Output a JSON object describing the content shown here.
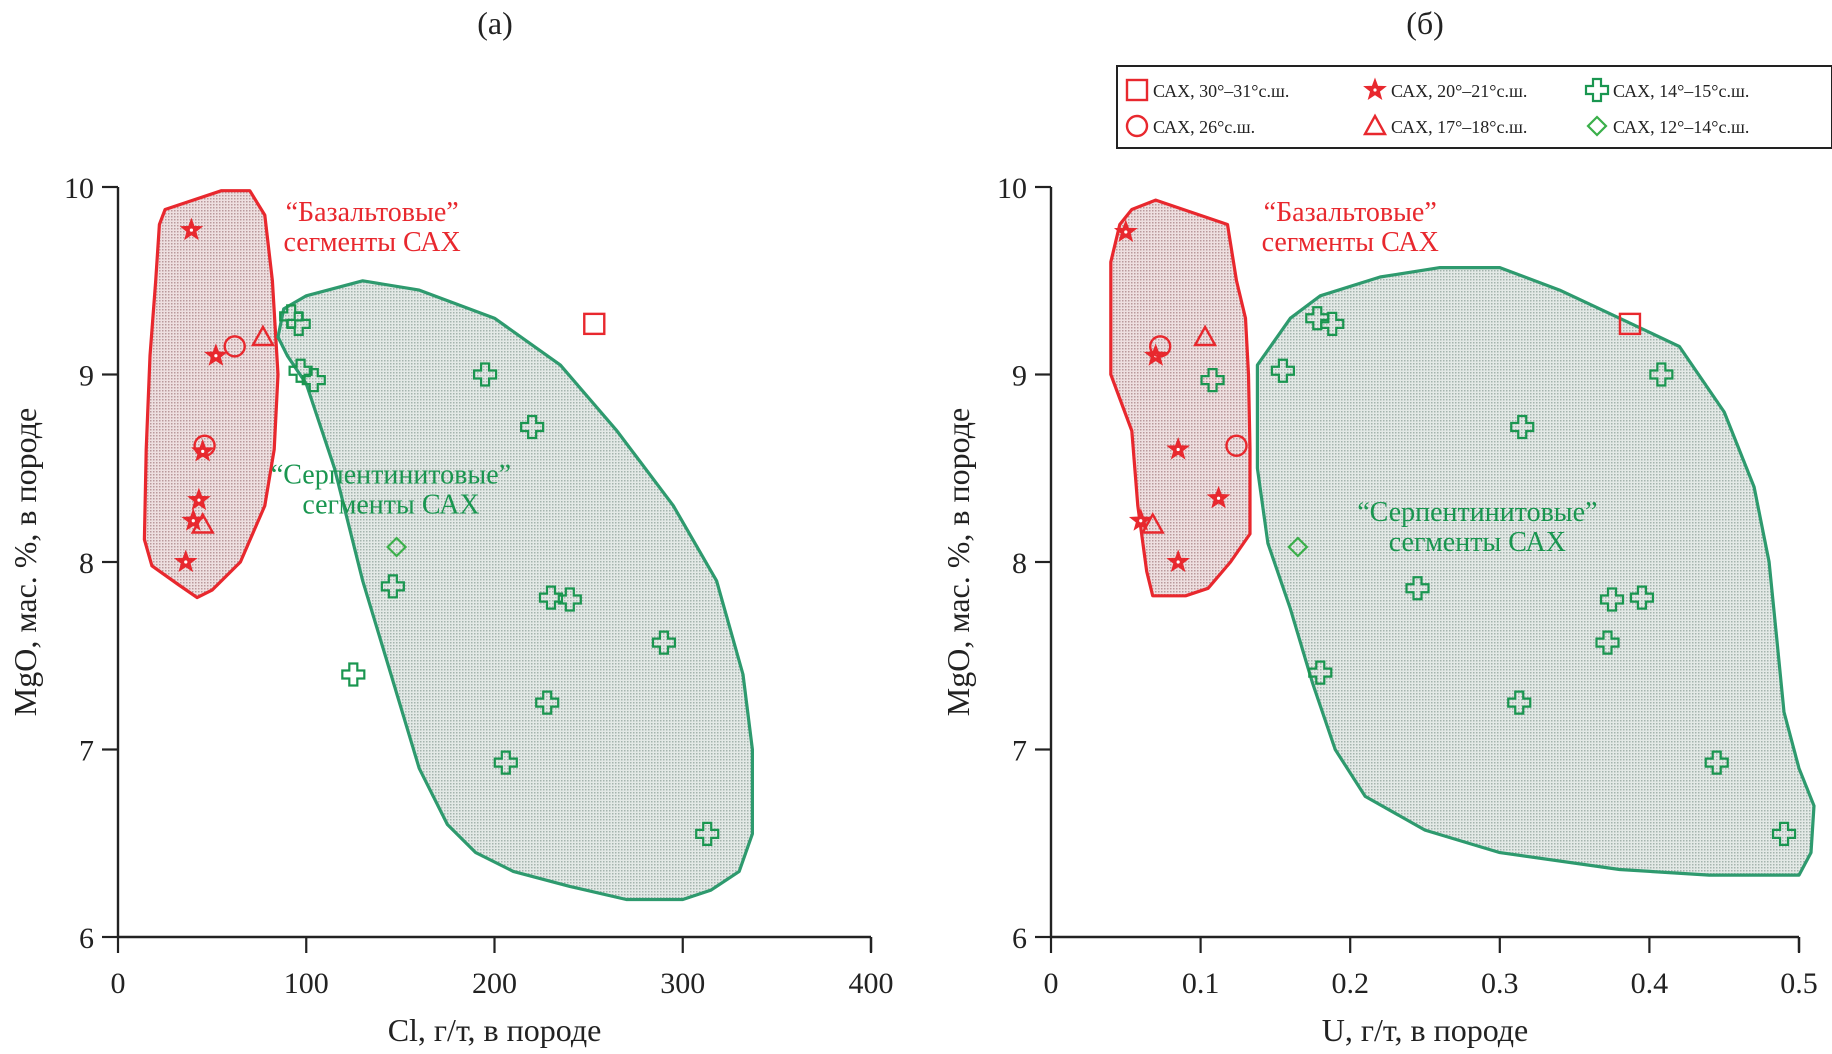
{
  "colors": {
    "red": "#e8282e",
    "green": "#1a9650",
    "green_region_stroke": "#2e9a6e",
    "green_region_fill": "#d3dcd8",
    "red_region_fill": "#e3cfd0",
    "light_green": "#3aaf4a",
    "axis": "#222222"
  },
  "legend": {
    "items": [
      {
        "symbol": "square",
        "color": "red",
        "label": "САХ, 30°–31°с.ш."
      },
      {
        "symbol": "star",
        "color": "red",
        "label": "САХ, 20°–21°с.ш."
      },
      {
        "symbol": "cross",
        "color": "green",
        "label": "САХ, 14°–15°с.ш."
      },
      {
        "symbol": "circle",
        "color": "red",
        "label": "САХ, 26°с.ш."
      },
      {
        "symbol": "triangle",
        "color": "red",
        "label": "САХ, 17°–18°с.ш."
      },
      {
        "symbol": "diamond",
        "color": "light_green",
        "label": "САХ, 12°–14°с.ш."
      }
    ]
  },
  "chart_data": [
    {
      "type": "scatter",
      "title": "(а)",
      "xlabel": "Cl, г/т, в породе",
      "ylabel": "MgO, мас. %, в породе",
      "xlim": [
        0,
        400
      ],
      "ylim": [
        6,
        10
      ],
      "xticks": [
        0,
        100,
        200,
        300,
        400
      ],
      "xtick_labels": [
        "0",
        "100",
        "200",
        "300",
        "400"
      ],
      "yticks": [
        6,
        7,
        8,
        9,
        10
      ],
      "ytick_labels": [
        "6",
        "7",
        "8",
        "9",
        "10"
      ],
      "grid": false,
      "regions": [
        {
          "name": "basalt",
          "label_lines": [
            "“Базальтовые”",
            "сегменты САХ"
          ],
          "label_anchor": [
            135,
            9.82
          ],
          "color": "red",
          "outline": [
            [
              25,
              9.88
            ],
            [
              55,
              9.98
            ],
            [
              70,
              9.98
            ],
            [
              78,
              9.85
            ],
            [
              82,
              9.5
            ],
            [
              85,
              9.0
            ],
            [
              83,
              8.6
            ],
            [
              78,
              8.3
            ],
            [
              65,
              8.0
            ],
            [
              50,
              7.85
            ],
            [
              42,
              7.81
            ],
            [
              32,
              7.88
            ],
            [
              18,
              7.98
            ],
            [
              14,
              8.12
            ],
            [
              15,
              8.6
            ],
            [
              17,
              9.1
            ],
            [
              20,
              9.5
            ],
            [
              22,
              9.8
            ]
          ]
        },
        {
          "name": "serpentinite",
          "label_lines": [
            "“Серпентинитовые”",
            "сегменты САХ"
          ],
          "label_anchor": [
            145,
            8.42
          ],
          "color": "green",
          "outline": [
            [
              88,
              9.35
            ],
            [
              100,
              9.42
            ],
            [
              130,
              9.5
            ],
            [
              160,
              9.45
            ],
            [
              200,
              9.3
            ],
            [
              235,
              9.05
            ],
            [
              265,
              8.7
            ],
            [
              295,
              8.3
            ],
            [
              318,
              7.9
            ],
            [
              332,
              7.4
            ],
            [
              337,
              7.0
            ],
            [
              337,
              6.55
            ],
            [
              330,
              6.35
            ],
            [
              315,
              6.25
            ],
            [
              300,
              6.2
            ],
            [
              270,
              6.2
            ],
            [
              240,
              6.27
            ],
            [
              210,
              6.35
            ],
            [
              190,
              6.45
            ],
            [
              175,
              6.6
            ],
            [
              160,
              6.9
            ],
            [
              145,
              7.4
            ],
            [
              130,
              7.9
            ],
            [
              115,
              8.5
            ],
            [
              100,
              8.95
            ],
            [
              90,
              9.1
            ],
            [
              85,
              9.2
            ]
          ]
        }
      ],
      "series": [
        {
          "name": "САХ, 30°–31°с.ш.",
          "symbol": "square",
          "color": "red",
          "points": [
            [
              253,
              9.27
            ]
          ]
        },
        {
          "name": "САХ, 20°–21°с.ш.",
          "symbol": "star",
          "color": "red",
          "points": [
            [
              39,
              9.77
            ],
            [
              52,
              9.1
            ],
            [
              45,
              8.59
            ],
            [
              43,
              8.33
            ],
            [
              40,
              8.22
            ],
            [
              36,
              8.0
            ]
          ]
        },
        {
          "name": "САХ, 14°–15°с.ш.",
          "symbol": "cross",
          "color": "green",
          "points": [
            [
              92,
              9.31
            ],
            [
              96,
              9.27
            ],
            [
              97,
              9.02
            ],
            [
              104,
              8.97
            ],
            [
              195,
              9.0
            ],
            [
              220,
              8.72
            ],
            [
              146,
              7.87
            ],
            [
              230,
              7.81
            ],
            [
              240,
              7.8
            ],
            [
              290,
              7.57
            ],
            [
              125,
              7.4
            ],
            [
              228,
              7.25
            ],
            [
              206,
              6.93
            ],
            [
              313,
              6.55
            ]
          ]
        },
        {
          "name": "САХ, 26°с.ш.",
          "symbol": "circle",
          "color": "red",
          "points": [
            [
              62,
              9.15
            ],
            [
              46,
              8.62
            ]
          ]
        },
        {
          "name": "САХ, 17°–18°с.ш.",
          "symbol": "triangle",
          "color": "red",
          "points": [
            [
              77,
              9.2
            ],
            [
              45,
              8.2
            ]
          ]
        },
        {
          "name": "САХ, 12°–14°с.ш.",
          "symbol": "diamond",
          "color": "light_green",
          "points": [
            [
              148,
              8.08
            ]
          ]
        }
      ]
    },
    {
      "type": "scatter",
      "title": "(б)",
      "xlabel": "U, г/т, в породе",
      "ylabel": "MgO, мас. %, в породе",
      "xlim": [
        0,
        0.5
      ],
      "ylim": [
        6,
        10
      ],
      "xticks": [
        0,
        0.1,
        0.2,
        0.3,
        0.4,
        0.5
      ],
      "xtick_labels": [
        "0",
        "0.1",
        "0.2",
        "0.3",
        "0.4",
        "0.5"
      ],
      "yticks": [
        6,
        7,
        8,
        9,
        10
      ],
      "ytick_labels": [
        "6",
        "7",
        "8",
        "9",
        "10"
      ],
      "grid": false,
      "legend_position": "top-right",
      "regions": [
        {
          "name": "basalt",
          "label_lines": [
            "“Базальтовые”",
            "сегменты САХ"
          ],
          "label_anchor": [
            0.2,
            9.82
          ],
          "color": "red",
          "outline": [
            [
              0.054,
              9.88
            ],
            [
              0.07,
              9.93
            ],
            [
              0.118,
              9.8
            ],
            [
              0.124,
              9.5
            ],
            [
              0.13,
              9.3
            ],
            [
              0.132,
              9.0
            ],
            [
              0.133,
              8.6
            ],
            [
              0.133,
              8.15
            ],
            [
              0.12,
              8.0
            ],
            [
              0.105,
              7.86
            ],
            [
              0.09,
              7.82
            ],
            [
              0.068,
              7.82
            ],
            [
              0.064,
              7.95
            ],
            [
              0.058,
              8.3
            ],
            [
              0.054,
              8.7
            ],
            [
              0.04,
              9.0
            ],
            [
              0.04,
              9.6
            ],
            [
              0.046,
              9.8
            ]
          ]
        },
        {
          "name": "serpentinite",
          "label_lines": [
            "“Серпентинитовые”",
            "сегменты САХ"
          ],
          "label_anchor": [
            0.285,
            8.22
          ],
          "color": "green",
          "outline": [
            [
              0.138,
              9.05
            ],
            [
              0.16,
              9.3
            ],
            [
              0.18,
              9.42
            ],
            [
              0.22,
              9.52
            ],
            [
              0.26,
              9.57
            ],
            [
              0.3,
              9.57
            ],
            [
              0.34,
              9.45
            ],
            [
              0.38,
              9.3
            ],
            [
              0.42,
              9.15
            ],
            [
              0.45,
              8.8
            ],
            [
              0.47,
              8.4
            ],
            [
              0.48,
              8.0
            ],
            [
              0.485,
              7.6
            ],
            [
              0.49,
              7.2
            ],
            [
              0.5,
              6.9
            ],
            [
              0.51,
              6.7
            ],
            [
              0.508,
              6.45
            ],
            [
              0.5,
              6.33
            ],
            [
              0.44,
              6.33
            ],
            [
              0.38,
              6.36
            ],
            [
              0.3,
              6.45
            ],
            [
              0.25,
              6.57
            ],
            [
              0.21,
              6.75
            ],
            [
              0.19,
              7.0
            ],
            [
              0.175,
              7.35
            ],
            [
              0.16,
              7.75
            ],
            [
              0.145,
              8.1
            ],
            [
              0.138,
              8.5
            ]
          ]
        }
      ],
      "series": [
        {
          "name": "САХ, 30°–31°с.ш.",
          "symbol": "square",
          "color": "red",
          "points": [
            [
              0.387,
              9.27
            ]
          ]
        },
        {
          "name": "САХ, 20°–21°с.ш.",
          "symbol": "star",
          "color": "red",
          "points": [
            [
              0.05,
              9.76
            ],
            [
              0.07,
              9.1
            ],
            [
              0.085,
              8.6
            ],
            [
              0.112,
              8.34
            ],
            [
              0.06,
              8.22
            ],
            [
              0.085,
              8.0
            ]
          ]
        },
        {
          "name": "САХ, 14°–15°с.ш.",
          "symbol": "cross",
          "color": "green",
          "points": [
            [
              0.178,
              9.3
            ],
            [
              0.188,
              9.27
            ],
            [
              0.155,
              9.02
            ],
            [
              0.108,
              8.97
            ],
            [
              0.408,
              9.0
            ],
            [
              0.315,
              8.72
            ],
            [
              0.245,
              7.86
            ],
            [
              0.375,
              7.8
            ],
            [
              0.395,
              7.81
            ],
            [
              0.372,
              7.57
            ],
            [
              0.18,
              7.41
            ],
            [
              0.313,
              7.25
            ],
            [
              0.445,
              6.93
            ],
            [
              0.49,
              6.55
            ]
          ]
        },
        {
          "name": "САХ, 26°с.ш.",
          "symbol": "circle",
          "color": "red",
          "points": [
            [
              0.073,
              9.15
            ],
            [
              0.124,
              8.62
            ]
          ]
        },
        {
          "name": "САХ, 17°–18°с.ш.",
          "symbol": "triangle",
          "color": "red",
          "points": [
            [
              0.103,
              9.2
            ],
            [
              0.068,
              8.2
            ]
          ]
        },
        {
          "name": "САХ, 12°–14°с.ш.",
          "symbol": "diamond",
          "color": "light_green",
          "points": [
            [
              0.165,
              8.08
            ]
          ]
        }
      ]
    }
  ]
}
